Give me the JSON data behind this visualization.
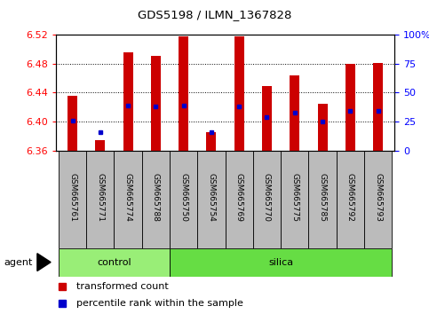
{
  "title": "GDS5198 / ILMN_1367828",
  "samples": [
    "GSM665761",
    "GSM665771",
    "GSM665774",
    "GSM665788",
    "GSM665750",
    "GSM665754",
    "GSM665769",
    "GSM665770",
    "GSM665775",
    "GSM665785",
    "GSM665792",
    "GSM665793"
  ],
  "groups": [
    "control",
    "control",
    "control",
    "control",
    "silica",
    "silica",
    "silica",
    "silica",
    "silica",
    "silica",
    "silica",
    "silica"
  ],
  "bar_heights": [
    6.436,
    6.374,
    6.495,
    6.491,
    6.518,
    6.385,
    6.518,
    6.449,
    6.464,
    6.425,
    6.48,
    6.481
  ],
  "blue_positions": [
    6.401,
    6.385,
    6.422,
    6.421,
    6.422,
    6.386,
    6.421,
    6.406,
    6.412,
    6.4,
    6.415,
    6.415
  ],
  "ylim_left": [
    6.36,
    6.52
  ],
  "ylim_right": [
    0,
    100
  ],
  "yticks_left": [
    6.36,
    6.4,
    6.44,
    6.48,
    6.52
  ],
  "yticks_right": [
    0,
    25,
    50,
    75,
    100
  ],
  "bar_color": "#CC0000",
  "blue_color": "#0000CC",
  "bar_bottom": 6.36,
  "control_color": "#99EE77",
  "silica_color": "#66DD44",
  "label_bg_color": "#BBBBBB",
  "xlabel_agent": "agent",
  "legend_red": "transformed count",
  "legend_blue": "percentile rank within the sample",
  "n_control": 4,
  "n_silica": 8
}
